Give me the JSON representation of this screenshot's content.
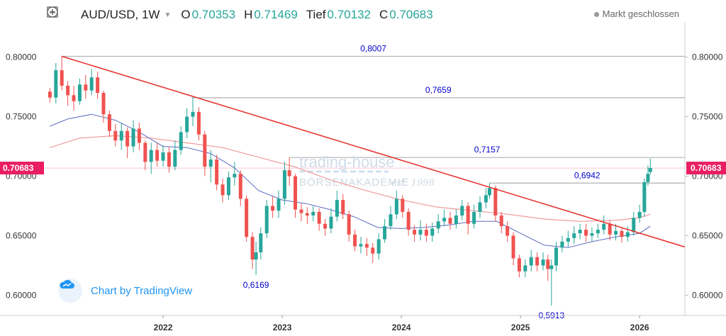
{
  "header": {
    "symbol": "AUD/USD, 1W",
    "open_label": "O",
    "open_value": "0.70353",
    "high_label": "H",
    "high_value": "0.71469",
    "low_label": "Tief",
    "low_value": "0.70132",
    "close_label": "C",
    "close_value": "0.70683"
  },
  "status": {
    "label": "Markt geschlossen"
  },
  "badge": {
    "label": "Chart by TradingView"
  },
  "watermark": {
    "line1": "trading-house",
    "line2": "BÖRSENAKADEMIE",
    "line3": "est. 1998"
  },
  "colors": {
    "up": "#26a69a",
    "down": "#ef5350",
    "trendline": "#e53935",
    "ma_fast": "#5c6bc0",
    "ma_slow": "#ef9a9a",
    "level": "#b0b0b0",
    "price_tag": "#e91e63",
    "annotation": "#0000cc"
  },
  "chart_data": {
    "type": "candlestick",
    "title": "AUD/USD, 1W",
    "current_price": 0.70683,
    "current_price_label": "0.70683",
    "y_ticks": [
      "0.60000",
      "0.65000",
      "0.70000",
      "0.75000",
      "0.80000"
    ],
    "x_ticks": [
      "2022",
      "2023",
      "2024",
      "2025",
      "2026"
    ],
    "ylim": [
      0.583,
      0.823
    ],
    "xlim": [
      2021.0,
      2026.38
    ],
    "horizontal_levels": [
      {
        "label": "0,8007",
        "value": 0.8007,
        "from": 2021.15
      },
      {
        "label": "0,7659",
        "value": 0.7659,
        "from": 2022.24
      },
      {
        "label": "0,7157",
        "value": 0.7157,
        "from": 2023.06
      },
      {
        "label": "0,6942",
        "value": 0.6942,
        "from": 2024.74
      }
    ],
    "annotations": [
      {
        "label": "0,6169",
        "x": 2022.78,
        "y": 0.6169
      },
      {
        "label": "0,5913",
        "x": 2025.26,
        "y": 0.5913
      }
    ],
    "trendline": {
      "from": [
        2021.15,
        0.8007
      ],
      "to": [
        2026.38,
        0.6405
      ]
    },
    "candles": [
      [
        2021.05,
        0.771,
        0.766,
        0.774,
        0.762
      ],
      [
        2021.1,
        0.766,
        0.789,
        0.795,
        0.761
      ],
      [
        2021.15,
        0.789,
        0.776,
        0.8007,
        0.772
      ],
      [
        2021.2,
        0.776,
        0.768,
        0.78,
        0.759
      ],
      [
        2021.25,
        0.768,
        0.763,
        0.776,
        0.755
      ],
      [
        2021.3,
        0.763,
        0.777,
        0.782,
        0.76
      ],
      [
        2021.35,
        0.777,
        0.772,
        0.785,
        0.765
      ],
      [
        2021.4,
        0.772,
        0.783,
        0.79,
        0.768
      ],
      [
        2021.45,
        0.783,
        0.77,
        0.788,
        0.765
      ],
      [
        2021.5,
        0.77,
        0.752,
        0.772,
        0.745
      ],
      [
        2021.55,
        0.752,
        0.738,
        0.755,
        0.733
      ],
      [
        2021.6,
        0.738,
        0.73,
        0.744,
        0.725
      ],
      [
        2021.65,
        0.73,
        0.738,
        0.745,
        0.722
      ],
      [
        2021.7,
        0.738,
        0.725,
        0.741,
        0.715
      ],
      [
        2021.75,
        0.725,
        0.74,
        0.747,
        0.72
      ],
      [
        2021.8,
        0.74,
        0.728,
        0.745,
        0.722
      ],
      [
        2021.85,
        0.728,
        0.712,
        0.73,
        0.705
      ],
      [
        2021.9,
        0.712,
        0.722,
        0.728,
        0.702
      ],
      [
        2021.95,
        0.722,
        0.713,
        0.728,
        0.708
      ],
      [
        2022.0,
        0.713,
        0.72,
        0.726,
        0.708
      ],
      [
        2022.05,
        0.72,
        0.708,
        0.725,
        0.703
      ],
      [
        2022.1,
        0.708,
        0.722,
        0.73,
        0.705
      ],
      [
        2022.15,
        0.722,
        0.737,
        0.742,
        0.718
      ],
      [
        2022.2,
        0.737,
        0.75,
        0.757,
        0.732
      ],
      [
        2022.25,
        0.75,
        0.754,
        0.7659,
        0.742
      ],
      [
        2022.3,
        0.754,
        0.735,
        0.758,
        0.73
      ],
      [
        2022.35,
        0.735,
        0.708,
        0.738,
        0.7
      ],
      [
        2022.4,
        0.708,
        0.714,
        0.722,
        0.695
      ],
      [
        2022.45,
        0.714,
        0.693,
        0.718,
        0.688
      ],
      [
        2022.5,
        0.693,
        0.684,
        0.698,
        0.678
      ],
      [
        2022.55,
        0.684,
        0.699,
        0.704,
        0.68
      ],
      [
        2022.6,
        0.699,
        0.702,
        0.712,
        0.692
      ],
      [
        2022.65,
        0.702,
        0.681,
        0.705,
        0.675
      ],
      [
        2022.7,
        0.681,
        0.649,
        0.684,
        0.645
      ],
      [
        2022.75,
        0.649,
        0.63,
        0.653,
        0.622
      ],
      [
        2022.78,
        0.63,
        0.636,
        0.645,
        0.6169
      ],
      [
        2022.82,
        0.636,
        0.652,
        0.657,
        0.63
      ],
      [
        2022.87,
        0.652,
        0.675,
        0.68,
        0.648
      ],
      [
        2022.92,
        0.675,
        0.671,
        0.683,
        0.665
      ],
      [
        2022.97,
        0.671,
        0.681,
        0.688,
        0.665
      ],
      [
        2023.02,
        0.681,
        0.705,
        0.712,
        0.676
      ],
      [
        2023.06,
        0.705,
        0.7,
        0.7157,
        0.692
      ],
      [
        2023.11,
        0.7,
        0.672,
        0.702,
        0.665
      ],
      [
        2023.16,
        0.672,
        0.669,
        0.677,
        0.662
      ],
      [
        2023.21,
        0.669,
        0.667,
        0.674,
        0.66
      ],
      [
        2023.26,
        0.667,
        0.67,
        0.675,
        0.662
      ],
      [
        2023.31,
        0.67,
        0.66,
        0.673,
        0.654
      ],
      [
        2023.36,
        0.66,
        0.656,
        0.664,
        0.65
      ],
      [
        2023.41,
        0.656,
        0.666,
        0.673,
        0.652
      ],
      [
        2023.46,
        0.666,
        0.68,
        0.688,
        0.662
      ],
      [
        2023.51,
        0.68,
        0.668,
        0.685,
        0.664
      ],
      [
        2023.56,
        0.668,
        0.651,
        0.671,
        0.645
      ],
      [
        2023.61,
        0.651,
        0.641,
        0.655,
        0.637
      ],
      [
        2023.66,
        0.641,
        0.643,
        0.649,
        0.635
      ],
      [
        2023.71,
        0.643,
        0.64,
        0.648,
        0.633
      ],
      [
        2023.76,
        0.64,
        0.635,
        0.644,
        0.627
      ],
      [
        2023.81,
        0.635,
        0.647,
        0.652,
        0.63
      ],
      [
        2023.86,
        0.647,
        0.658,
        0.664,
        0.644
      ],
      [
        2023.91,
        0.658,
        0.668,
        0.675,
        0.655
      ],
      [
        2023.96,
        0.668,
        0.681,
        0.688,
        0.664
      ],
      [
        2024.01,
        0.681,
        0.67,
        0.684,
        0.665
      ],
      [
        2024.06,
        0.67,
        0.655,
        0.673,
        0.65
      ],
      [
        2024.11,
        0.655,
        0.651,
        0.659,
        0.645
      ],
      [
        2024.16,
        0.651,
        0.655,
        0.663,
        0.646
      ],
      [
        2024.21,
        0.655,
        0.65,
        0.66,
        0.645
      ],
      [
        2024.26,
        0.65,
        0.656,
        0.661,
        0.645
      ],
      [
        2024.31,
        0.656,
        0.662,
        0.668,
        0.652
      ],
      [
        2024.36,
        0.662,
        0.665,
        0.672,
        0.658
      ],
      [
        2024.41,
        0.665,
        0.66,
        0.67,
        0.655
      ],
      [
        2024.46,
        0.66,
        0.667,
        0.672,
        0.656
      ],
      [
        2024.51,
        0.667,
        0.675,
        0.68,
        0.663
      ],
      [
        2024.56,
        0.675,
        0.66,
        0.678,
        0.651
      ],
      [
        2024.61,
        0.66,
        0.67,
        0.676,
        0.656
      ],
      [
        2024.66,
        0.67,
        0.678,
        0.683,
        0.665
      ],
      [
        2024.71,
        0.678,
        0.684,
        0.69,
        0.673
      ],
      [
        2024.74,
        0.684,
        0.69,
        0.6942,
        0.681
      ],
      [
        2024.79,
        0.69,
        0.667,
        0.692,
        0.662
      ],
      [
        2024.84,
        0.667,
        0.658,
        0.67,
        0.652
      ],
      [
        2024.89,
        0.658,
        0.65,
        0.662,
        0.645
      ],
      [
        2024.94,
        0.65,
        0.631,
        0.653,
        0.625
      ],
      [
        2024.99,
        0.631,
        0.62,
        0.634,
        0.615
      ],
      [
        2025.04,
        0.62,
        0.625,
        0.63,
        0.615
      ],
      [
        2025.09,
        0.625,
        0.632,
        0.638,
        0.62
      ],
      [
        2025.14,
        0.632,
        0.625,
        0.636,
        0.62
      ],
      [
        2025.19,
        0.625,
        0.63,
        0.636,
        0.621
      ],
      [
        2025.23,
        0.63,
        0.622,
        0.634,
        0.612
      ],
      [
        2025.26,
        0.622,
        0.625,
        0.63,
        0.5913
      ],
      [
        2025.3,
        0.625,
        0.64,
        0.645,
        0.62
      ],
      [
        2025.35,
        0.64,
        0.645,
        0.65,
        0.636
      ],
      [
        2025.4,
        0.645,
        0.648,
        0.654,
        0.64
      ],
      [
        2025.45,
        0.648,
        0.652,
        0.658,
        0.643
      ],
      [
        2025.5,
        0.652,
        0.655,
        0.66,
        0.647
      ],
      [
        2025.55,
        0.655,
        0.65,
        0.66,
        0.645
      ],
      [
        2025.6,
        0.65,
        0.652,
        0.657,
        0.645
      ],
      [
        2025.65,
        0.652,
        0.655,
        0.66,
        0.648
      ],
      [
        2025.7,
        0.655,
        0.66,
        0.667,
        0.651
      ],
      [
        2025.75,
        0.66,
        0.651,
        0.663,
        0.646
      ],
      [
        2025.8,
        0.651,
        0.654,
        0.66,
        0.646
      ],
      [
        2025.85,
        0.654,
        0.649,
        0.657,
        0.644
      ],
      [
        2025.9,
        0.649,
        0.653,
        0.658,
        0.645
      ],
      [
        2025.95,
        0.653,
        0.665,
        0.67,
        0.65
      ],
      [
        2026.0,
        0.665,
        0.67,
        0.676,
        0.661
      ],
      [
        2026.04,
        0.67,
        0.695,
        0.698,
        0.666
      ],
      [
        2026.07,
        0.695,
        0.702,
        0.709,
        0.692
      ],
      [
        2026.09,
        0.7035,
        0.70683,
        0.71469,
        0.70132
      ]
    ],
    "ma_fast": [
      [
        2021.05,
        0.742
      ],
      [
        2021.2,
        0.748
      ],
      [
        2021.4,
        0.752
      ],
      [
        2021.6,
        0.747
      ],
      [
        2021.8,
        0.737
      ],
      [
        2022.0,
        0.725
      ],
      [
        2022.2,
        0.724
      ],
      [
        2022.4,
        0.719
      ],
      [
        2022.6,
        0.707
      ],
      [
        2022.8,
        0.688
      ],
      [
        2023.0,
        0.68
      ],
      [
        2023.2,
        0.677
      ],
      [
        2023.4,
        0.672
      ],
      [
        2023.6,
        0.666
      ],
      [
        2023.8,
        0.657
      ],
      [
        2024.0,
        0.656
      ],
      [
        2024.2,
        0.657
      ],
      [
        2024.4,
        0.659
      ],
      [
        2024.6,
        0.662
      ],
      [
        2024.8,
        0.662
      ],
      [
        2025.0,
        0.652
      ],
      [
        2025.2,
        0.642
      ],
      [
        2025.4,
        0.64
      ],
      [
        2025.6,
        0.645
      ],
      [
        2025.8,
        0.649
      ],
      [
        2026.0,
        0.652
      ],
      [
        2026.09,
        0.658
      ]
    ],
    "ma_slow": [
      [
        2021.05,
        0.724
      ],
      [
        2021.3,
        0.732
      ],
      [
        2021.6,
        0.734
      ],
      [
        2021.9,
        0.732
      ],
      [
        2022.2,
        0.728
      ],
      [
        2022.5,
        0.724
      ],
      [
        2022.8,
        0.716
      ],
      [
        2023.1,
        0.708
      ],
      [
        2023.4,
        0.697
      ],
      [
        2023.7,
        0.688
      ],
      [
        2024.0,
        0.68
      ],
      [
        2024.3,
        0.674
      ],
      [
        2024.6,
        0.671
      ],
      [
        2024.9,
        0.668
      ],
      [
        2025.2,
        0.664
      ],
      [
        2025.5,
        0.662
      ],
      [
        2025.8,
        0.663
      ],
      [
        2026.0,
        0.665
      ],
      [
        2026.09,
        0.668
      ]
    ]
  }
}
